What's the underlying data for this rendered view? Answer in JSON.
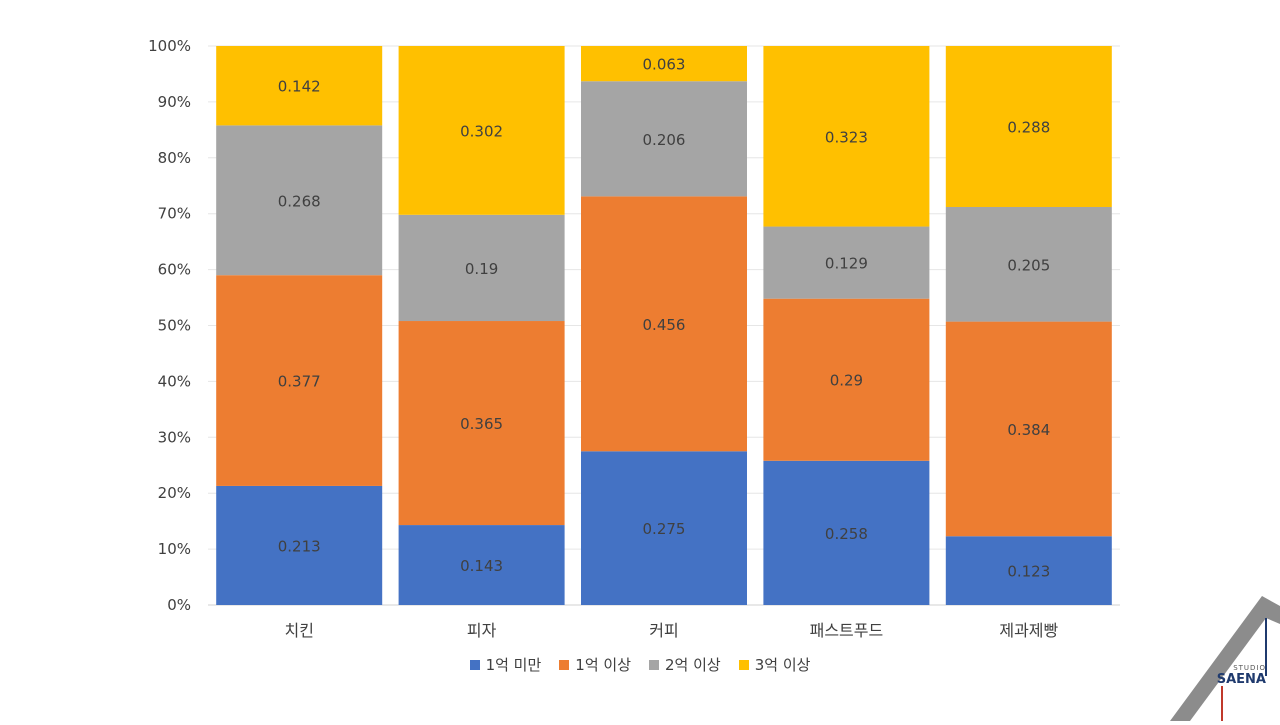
{
  "chart_data": {
    "type": "bar",
    "stacked": true,
    "percent": true,
    "categories": [
      "치킨",
      "피자",
      "커피",
      "패스트푸드",
      "제과제빵"
    ],
    "series": [
      {
        "name": "1억 미만",
        "color": "#4472C4",
        "values": [
          0.213,
          0.143,
          0.275,
          0.258,
          0.123
        ]
      },
      {
        "name": "1억 이상",
        "color": "#ED7D31",
        "values": [
          0.377,
          0.365,
          0.456,
          0.29,
          0.384
        ]
      },
      {
        "name": "2억 이상",
        "color": "#A5A5A5",
        "values": [
          0.268,
          0.19,
          0.206,
          0.129,
          0.205
        ]
      },
      {
        "name": "3억 이상",
        "color": "#FFC000",
        "values": [
          0.142,
          0.302,
          0.063,
          0.323,
          0.288
        ]
      }
    ],
    "yticks": [
      "0%",
      "10%",
      "20%",
      "30%",
      "40%",
      "50%",
      "60%",
      "70%",
      "80%",
      "90%",
      "100%"
    ],
    "ylim": [
      0,
      1
    ],
    "grid": true,
    "legend_position": "bottom"
  },
  "logo": {
    "studio": "STUDIO",
    "name": "SAENA"
  }
}
